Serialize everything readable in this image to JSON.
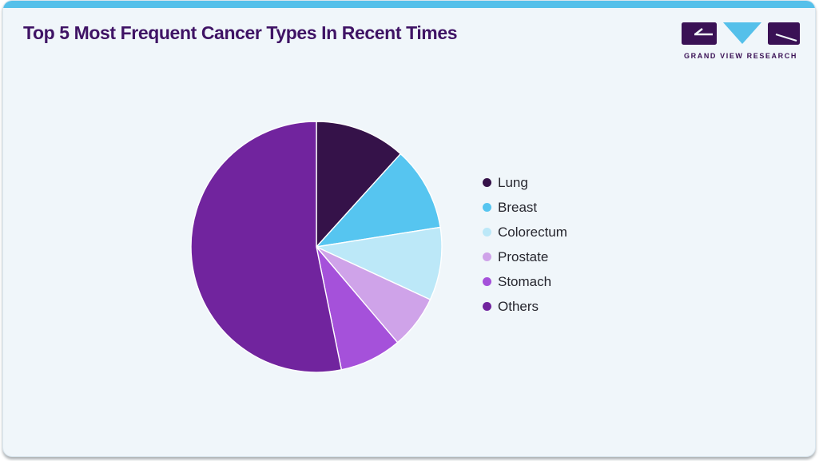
{
  "header": {
    "title": "Top 5 Most Frequent Cancer Types In Recent Times"
  },
  "branding": {
    "logo_text": "GRAND VIEW RESEARCH",
    "logo_icon": "gvr-monogram (purple block G, cyan down-triangle V, purple block R)"
  },
  "colors": {
    "accent_cyan": "#55C0EA",
    "title_purple": "#3F1365",
    "logo_purple": "#3A1155",
    "panel_bg": "#F0F6FA",
    "panel_border": "#D9E5ED",
    "legend_text": "#26262E",
    "slice_border": "#FFFFFF"
  },
  "chart_data": {
    "type": "pie",
    "title": "Top 5 Most Frequent Cancer Types In Recent Times",
    "categories": [
      "Lung",
      "Breast",
      "Colorectum",
      "Prostate",
      "Stomach",
      "Others"
    ],
    "values": [
      11.7,
      10.8,
      9.4,
      6.9,
      8.0,
      53.2
    ],
    "values_estimated_from_angles": true,
    "colors": [
      "#351249",
      "#56C5F0",
      "#BCE8F8",
      "#CFA3E9",
      "#A551DA",
      "#71249E"
    ],
    "start_angle_deg": 0,
    "direction": "clockwise",
    "legend_position": "right",
    "data_labels_shown": false
  }
}
